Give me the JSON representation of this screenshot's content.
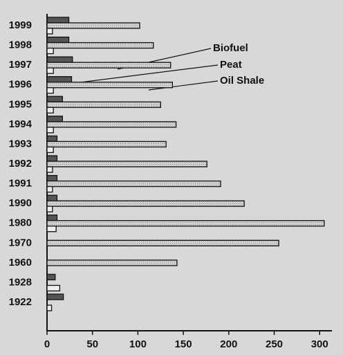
{
  "chart_data": {
    "type": "hbar",
    "categories": [
      "1999",
      "1998",
      "1997",
      "1996",
      "1995",
      "1994",
      "1993",
      "1992",
      "1991",
      "1990",
      "1980",
      "1970",
      "1960",
      "1928",
      "1922"
    ],
    "series": [
      {
        "name": "Peat",
        "color": "#555555",
        "values": [
          24,
          24,
          28,
          27,
          17,
          17,
          11,
          11,
          11,
          11,
          11,
          null,
          null,
          9,
          18
        ]
      },
      {
        "name": "Oil Shale",
        "color": "#c4c4c4",
        "values": [
          102,
          117,
          136,
          138,
          125,
          142,
          131,
          176,
          191,
          217,
          305,
          255,
          143,
          null,
          null
        ]
      },
      {
        "name": "Biofuel",
        "color": "#eeeeee",
        "values": [
          6,
          7,
          7,
          7,
          7,
          7,
          7,
          6,
          6,
          6,
          10,
          null,
          null,
          14,
          5
        ]
      }
    ],
    "xlim": [
      0,
      312
    ],
    "xticks": [
      0,
      50,
      100,
      150,
      200,
      250,
      300
    ]
  }
}
